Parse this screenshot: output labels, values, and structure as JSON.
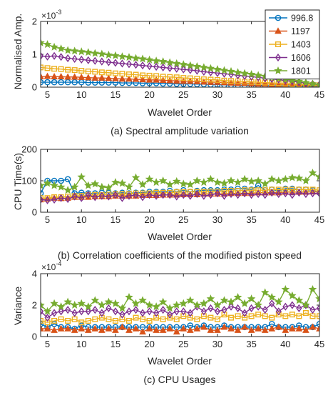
{
  "legend": {
    "placement": "top-right of panel (a)",
    "entries": [
      {
        "label": "996.8",
        "color": "#0072BD",
        "marker": "circle"
      },
      {
        "label": "1197",
        "color": "#D95319",
        "marker": "triangle"
      },
      {
        "label": "1403",
        "color": "#EDB120",
        "marker": "square"
      },
      {
        "label": "1606",
        "color": "#7E2F8E",
        "marker": "diamond"
      },
      {
        "label": "1801",
        "color": "#77AC30",
        "marker": "star"
      }
    ]
  },
  "chart_data": [
    {
      "type": "line",
      "caption": "(a) Spectral amplitude variation",
      "xlabel": "Wavelet Order",
      "ylabel": "Normalised Amp.",
      "exponent_label": "×10",
      "exponent_power": "-3",
      "xlim": [
        4,
        45
      ],
      "ylim": [
        0,
        2
      ],
      "xticks": [
        "5",
        "10",
        "15",
        "20",
        "25",
        "30",
        "35",
        "40",
        "45"
      ],
      "yticks": [
        "0",
        "1",
        "2"
      ],
      "grid": false,
      "x": [
        4,
        5,
        6,
        7,
        8,
        9,
        10,
        11,
        12,
        13,
        14,
        15,
        16,
        17,
        18,
        19,
        20,
        21,
        22,
        23,
        24,
        25,
        26,
        27,
        28,
        29,
        30,
        31,
        32,
        33,
        34,
        35,
        36,
        37,
        38,
        39,
        40,
        41,
        42,
        43,
        44,
        45
      ],
      "series": [
        {
          "name": "996.8",
          "values": [
            0.15,
            0.15,
            0.15,
            0.15,
            0.15,
            0.15,
            0.15,
            0.14,
            0.14,
            0.14,
            0.14,
            0.14,
            0.13,
            0.13,
            0.13,
            0.12,
            0.12,
            0.12,
            0.11,
            0.11,
            0.1,
            0.1,
            0.1,
            0.09,
            0.09,
            0.08,
            0.08,
            0.07,
            0.07,
            0.06,
            0.06,
            0.06,
            0.05,
            0.05,
            0.04,
            0.04,
            0.04,
            0.03,
            0.03,
            0.02,
            0.02,
            0.02
          ]
        },
        {
          "name": "1197",
          "values": [
            0.32,
            0.33,
            0.32,
            0.32,
            0.31,
            0.31,
            0.3,
            0.29,
            0.28,
            0.28,
            0.27,
            0.26,
            0.25,
            0.25,
            0.24,
            0.23,
            0.22,
            0.22,
            0.21,
            0.2,
            0.19,
            0.18,
            0.18,
            0.17,
            0.16,
            0.15,
            0.15,
            0.14,
            0.13,
            0.12,
            0.12,
            0.11,
            0.1,
            0.1,
            0.09,
            0.08,
            0.08,
            0.07,
            0.06,
            0.06,
            0.05,
            0.05
          ]
        },
        {
          "name": "1403",
          "values": [
            0.6,
            0.58,
            0.56,
            0.55,
            0.53,
            0.52,
            0.5,
            0.48,
            0.47,
            0.45,
            0.44,
            0.42,
            0.41,
            0.39,
            0.38,
            0.36,
            0.35,
            0.34,
            0.32,
            0.31,
            0.3,
            0.28,
            0.27,
            0.26,
            0.24,
            0.23,
            0.22,
            0.2,
            0.19,
            0.18,
            0.17,
            0.16,
            0.15,
            0.14,
            0.13,
            0.12,
            0.11,
            0.1,
            0.09,
            0.08,
            0.07,
            0.06
          ]
        },
        {
          "name": "1606",
          "values": [
            0.95,
            0.93,
            0.95,
            0.92,
            0.88,
            0.86,
            0.84,
            0.82,
            0.8,
            0.78,
            0.76,
            0.74,
            0.72,
            0.7,
            0.68,
            0.66,
            0.64,
            0.62,
            0.6,
            0.58,
            0.56,
            0.54,
            0.52,
            0.5,
            0.47,
            0.45,
            0.43,
            0.41,
            0.39,
            0.36,
            0.34,
            0.32,
            0.3,
            0.27,
            0.25,
            0.23,
            0.2,
            0.18,
            0.15,
            0.12,
            0.1,
            0.08
          ]
        },
        {
          "name": "1801",
          "values": [
            1.35,
            1.3,
            1.22,
            1.17,
            1.12,
            1.1,
            1.08,
            1.06,
            1.03,
            1.01,
            0.98,
            0.96,
            0.93,
            0.91,
            0.88,
            0.86,
            0.83,
            0.8,
            0.78,
            0.75,
            0.72,
            0.69,
            0.66,
            0.63,
            0.6,
            0.57,
            0.54,
            0.51,
            0.48,
            0.45,
            0.42,
            0.39,
            0.36,
            0.33,
            0.3,
            0.27,
            0.24,
            0.21,
            0.18,
            0.14,
            0.1,
            0.07
          ]
        }
      ]
    },
    {
      "type": "line",
      "caption": "(b) Correlation coefficients of the modified piston speed",
      "xlabel": "Wavelet Order",
      "ylabel": "CPU Time(s)",
      "xlim": [
        4,
        45
      ],
      "ylim": [
        0,
        200
      ],
      "xticks": [
        "5",
        "10",
        "15",
        "20",
        "25",
        "30",
        "35",
        "40",
        "45"
      ],
      "yticks": [
        "0",
        "100",
        "200"
      ],
      "grid": false,
      "x": [
        4,
        5,
        6,
        7,
        8,
        9,
        10,
        11,
        12,
        13,
        14,
        15,
        16,
        17,
        18,
        19,
        20,
        21,
        22,
        23,
        24,
        25,
        26,
        27,
        28,
        29,
        30,
        31,
        32,
        33,
        34,
        35,
        36,
        37,
        38,
        39,
        40,
        41,
        42,
        43,
        44,
        45
      ],
      "series": [
        {
          "name": "996.8",
          "values": [
            60,
            100,
            100,
            100,
            105,
            60,
            62,
            60,
            60,
            62,
            62,
            60,
            62,
            60,
            62,
            62,
            65,
            65,
            65,
            68,
            65,
            70,
            65,
            68,
            70,
            70,
            70,
            72,
            72,
            75,
            75,
            72,
            85,
            70,
            72,
            68,
            75,
            75,
            72,
            72,
            70,
            62
          ]
        },
        {
          "name": "1197",
          "values": [
            40,
            42,
            45,
            44,
            45,
            48,
            48,
            48,
            50,
            50,
            50,
            52,
            52,
            52,
            52,
            54,
            54,
            54,
            55,
            55,
            55,
            56,
            56,
            56,
            58,
            58,
            58,
            58,
            60,
            60,
            60,
            60,
            62,
            62,
            62,
            62,
            64,
            64,
            64,
            64,
            65,
            65
          ]
        },
        {
          "name": "1403",
          "values": [
            45,
            45,
            48,
            48,
            50,
            52,
            52,
            55,
            55,
            55,
            56,
            58,
            58,
            58,
            60,
            60,
            60,
            62,
            62,
            62,
            64,
            64,
            65,
            65,
            65,
            66,
            66,
            68,
            68,
            68,
            70,
            70,
            70,
            70,
            72,
            72,
            72,
            72,
            72,
            72,
            72,
            70
          ]
        },
        {
          "name": "1606",
          "values": [
            40,
            38,
            40,
            45,
            42,
            50,
            45,
            55,
            48,
            52,
            50,
            55,
            45,
            52,
            55,
            48,
            55,
            52,
            55,
            55,
            50,
            55,
            52,
            58,
            52,
            55,
            60,
            52,
            58,
            55,
            60,
            55,
            58,
            55,
            62,
            58,
            60,
            55,
            62,
            58,
            60,
            60
          ]
        },
        {
          "name": "1801",
          "values": [
            85,
            92,
            85,
            80,
            70,
            80,
            112,
            85,
            90,
            80,
            78,
            95,
            92,
            80,
            110,
            88,
            105,
            95,
            100,
            88,
            98,
            90,
            88,
            100,
            95,
            105,
            95,
            92,
            100,
            95,
            105,
            98,
            100,
            90,
            105,
            100,
            105,
            110,
            108,
            100,
            125,
            112
          ]
        }
      ]
    },
    {
      "type": "line",
      "caption": "(c) CPU Usages",
      "xlabel": "Wavelet Order",
      "ylabel": "Variance",
      "exponent_label": "×10",
      "exponent_power": "-4",
      "xlim": [
        4,
        45
      ],
      "ylim": [
        0,
        4
      ],
      "xticks": [
        "5",
        "10",
        "15",
        "20",
        "25",
        "30",
        "35",
        "40",
        "45"
      ],
      "yticks": [
        "0",
        "2",
        "4"
      ],
      "grid": false,
      "x": [
        4,
        5,
        6,
        7,
        8,
        9,
        10,
        11,
        12,
        13,
        14,
        15,
        16,
        17,
        18,
        19,
        20,
        21,
        22,
        23,
        24,
        25,
        26,
        27,
        28,
        29,
        30,
        31,
        32,
        33,
        34,
        35,
        36,
        37,
        38,
        39,
        40,
        41,
        42,
        43,
        44,
        45
      ],
      "series": [
        {
          "name": "996.8",
          "values": [
            0.8,
            0.6,
            0.8,
            0.6,
            0.6,
            0.5,
            0.7,
            0.6,
            0.6,
            0.6,
            0.6,
            0.6,
            0.6,
            0.6,
            0.6,
            0.6,
            0.6,
            0.6,
            0.6,
            0.6,
            0.6,
            0.6,
            0.7,
            0.6,
            0.7,
            0.6,
            0.6,
            0.7,
            0.6,
            0.6,
            0.6,
            0.6,
            0.6,
            0.6,
            0.8,
            0.6,
            0.6,
            0.6,
            0.7,
            0.6,
            0.6,
            0.8
          ]
        },
        {
          "name": "1197",
          "values": [
            0.5,
            0.5,
            0.4,
            0.5,
            0.5,
            0.4,
            0.5,
            0.4,
            0.5,
            0.4,
            0.5,
            0.4,
            0.6,
            0.4,
            0.5,
            0.3,
            0.5,
            0.4,
            0.4,
            0.5,
            0.3,
            0.5,
            0.4,
            0.5,
            0.6,
            0.4,
            0.4,
            0.6,
            0.5,
            0.4,
            0.6,
            0.4,
            0.5,
            0.4,
            0.5,
            0.6,
            0.4,
            0.5,
            0.5,
            0.4,
            0.6,
            0.5
          ]
        },
        {
          "name": "1403",
          "values": [
            1.0,
            0.9,
            1.0,
            1.1,
            1.0,
            1.1,
            0.9,
            1.0,
            1.1,
            1.2,
            1.1,
            1.0,
            1.1,
            1.0,
            1.2,
            1.1,
            1.0,
            1.2,
            1.1,
            1.2,
            1.1,
            1.3,
            1.2,
            1.1,
            1.3,
            1.2,
            1.1,
            1.4,
            1.2,
            1.3,
            1.2,
            1.3,
            1.4,
            1.3,
            1.2,
            1.4,
            1.3,
            1.4,
            1.3,
            1.5,
            1.3,
            1.3
          ]
        },
        {
          "name": "1606",
          "values": [
            1.6,
            1.2,
            1.5,
            1.6,
            1.7,
            1.5,
            1.6,
            1.6,
            1.7,
            1.5,
            1.8,
            1.6,
            1.4,
            1.6,
            1.7,
            1.5,
            1.6,
            1.5,
            1.7,
            1.4,
            1.6,
            1.6,
            1.5,
            1.9,
            1.6,
            1.8,
            1.6,
            1.7,
            1.9,
            1.8,
            1.5,
            1.8,
            1.9,
            1.7,
            2.1,
            1.6,
            1.9,
            2.0,
            1.8,
            2.0,
            1.7,
            1.8
          ]
        },
        {
          "name": "1801",
          "values": [
            2.0,
            1.6,
            2.1,
            1.9,
            2.2,
            2.0,
            2.1,
            1.9,
            2.3,
            2.0,
            2.2,
            2.1,
            1.8,
            2.5,
            2.1,
            2.3,
            2.0,
            1.9,
            2.2,
            1.8,
            2.0,
            2.1,
            2.3,
            2.0,
            2.1,
            2.4,
            2.0,
            2.3,
            2.2,
            2.5,
            2.1,
            2.4,
            2.0,
            2.8,
            2.5,
            2.2,
            3.0,
            2.6,
            2.3,
            2.0,
            3.0,
            2.4
          ]
        }
      ]
    }
  ]
}
